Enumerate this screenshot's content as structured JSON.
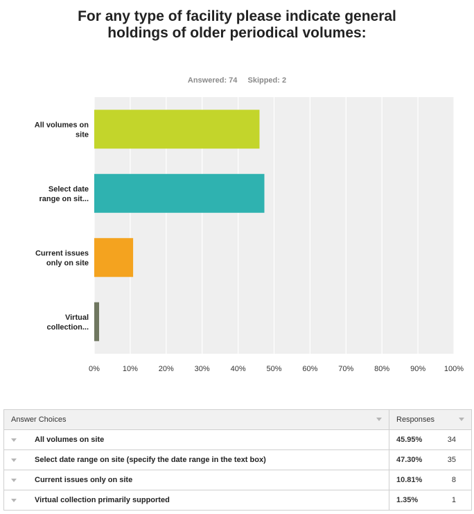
{
  "chart_data": {
    "type": "bar",
    "orientation": "horizontal",
    "title": "For any type of facility please indicate general holdings of older periodical volumes:",
    "answered_label": "Answered: 74",
    "skipped_label": "Skipped: 2",
    "categories": [
      "All volumes on site",
      "Select date range on sit...",
      "Current issues only on site",
      "Virtual collection..."
    ],
    "values": [
      45.95,
      47.3,
      10.81,
      1.35
    ],
    "colors": [
      "#c3d52b",
      "#2fb2b0",
      "#f4a31f",
      "#6f7760"
    ],
    "xlim": [
      0,
      100
    ],
    "xticks": [
      "0%",
      "10%",
      "20%",
      "30%",
      "40%",
      "50%",
      "60%",
      "70%",
      "80%",
      "90%",
      "100%"
    ],
    "grid": true,
    "plot_background": "#efefef"
  },
  "table": {
    "header_choices": "Answer Choices",
    "header_responses": "Responses",
    "rows": [
      {
        "choice": "All volumes on site",
        "percent": "45.95%",
        "count": "34"
      },
      {
        "choice": "Select date range on site (specify the date range in the text box)",
        "percent": "47.30%",
        "count": "35"
      },
      {
        "choice": "Current issues only on site",
        "percent": "10.81%",
        "count": "8"
      },
      {
        "choice": "Virtual collection primarily supported",
        "percent": "1.35%",
        "count": "1"
      }
    ]
  }
}
